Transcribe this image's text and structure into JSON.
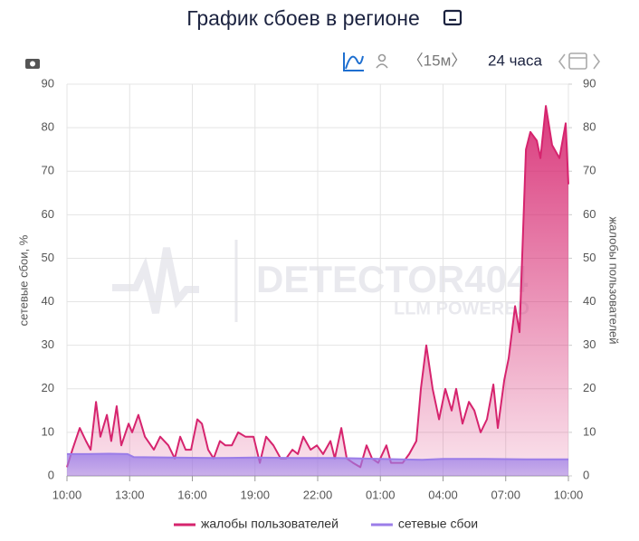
{
  "chart_data": {
    "type": "line",
    "title": "График сбоев в регионе",
    "toolbar": {
      "interval": "〈15м〉",
      "period": "24 часа"
    },
    "watermark": {
      "brand": "DETECTOR404",
      "tagline": "LLM POWERED"
    },
    "ylabel": "сетевые сбои, %",
    "y2label": "жалобы пользователей",
    "xlim": [
      0,
      24
    ],
    "xticks": [
      {
        "value": 0,
        "label": "10:00"
      },
      {
        "value": 3,
        "label": "13:00"
      },
      {
        "value": 6,
        "label": "16:00"
      },
      {
        "value": 9,
        "label": "19:00"
      },
      {
        "value": 12,
        "label": "22:00"
      },
      {
        "value": 15,
        "label": "01:00"
      },
      {
        "value": 18,
        "label": "04:00"
      },
      {
        "value": 21,
        "label": "07:00"
      },
      {
        "value": 24,
        "label": "10:00"
      }
    ],
    "ylim": [
      0,
      90
    ],
    "yticks": [
      0,
      10,
      20,
      30,
      40,
      50,
      60,
      70,
      80,
      90
    ],
    "y2lim": [
      0,
      90
    ],
    "y2ticks": [
      0,
      10,
      20,
      30,
      40,
      50,
      60,
      70,
      80,
      90
    ],
    "grid": true,
    "legend": "bottom",
    "series": [
      {
        "name": "жалобы пользователей",
        "color": "#d6246e",
        "axis": "y2",
        "x": [
          0,
          0.26,
          0.61,
          0.91,
          1.13,
          1.39,
          1.6,
          1.91,
          2.12,
          2.38,
          2.6,
          2.95,
          3.12,
          3.42,
          3.73,
          4.16,
          4.46,
          4.85,
          5.16,
          5.42,
          5.68,
          5.94,
          6.24,
          6.46,
          6.76,
          7.02,
          7.32,
          7.58,
          7.89,
          8.19,
          8.54,
          8.93,
          9.23,
          9.53,
          9.88,
          10.23,
          10.49,
          10.79,
          11.05,
          11.31,
          11.66,
          11.96,
          12.26,
          12.61,
          12.82,
          13.13,
          13.39,
          13.69,
          14.04,
          14.34,
          14.6,
          14.9,
          15.29,
          15.51,
          16.07,
          16.38,
          16.72,
          16.94,
          17.2,
          17.5,
          17.81,
          18.11,
          18.41,
          18.63,
          18.93,
          19.24,
          19.5,
          19.8,
          20.1,
          20.41,
          20.62,
          20.93,
          21.14,
          21.45,
          21.66,
          21.97,
          22.18,
          22.49,
          22.66,
          22.92,
          23.22,
          23.57,
          23.87,
          24
        ],
        "values": [
          2,
          6,
          11,
          8,
          6,
          17,
          9,
          14,
          8,
          16,
          7,
          12,
          10,
          14,
          9,
          6,
          9,
          7,
          4,
          9,
          6,
          6,
          13,
          12,
          6,
          4,
          8,
          7,
          7,
          10,
          9,
          9,
          3,
          9,
          7,
          4,
          4,
          6,
          5,
          9,
          6,
          7,
          5,
          8,
          4,
          11,
          4,
          3,
          2,
          7,
          4,
          3,
          7,
          3,
          3,
          5,
          8,
          20,
          30,
          20,
          13,
          20,
          15,
          20,
          12,
          17,
          15,
          10,
          13,
          21,
          11,
          22,
          27,
          39,
          33,
          75,
          79,
          77,
          73,
          85,
          76,
          73,
          81,
          67
        ]
      },
      {
        "name": "сетевые сбои",
        "color": "#9b7de8",
        "axis": "y",
        "x": [
          0,
          1,
          2,
          2.9,
          3.2,
          5,
          7,
          9,
          11,
          13,
          15,
          17,
          18,
          20,
          22,
          24
        ],
        "values": [
          5,
          5,
          5.1,
          5,
          4.3,
          4.2,
          4.1,
          4.2,
          4.1,
          4.1,
          3.9,
          3.7,
          3.9,
          3.9,
          3.8,
          3.8
        ]
      }
    ]
  }
}
